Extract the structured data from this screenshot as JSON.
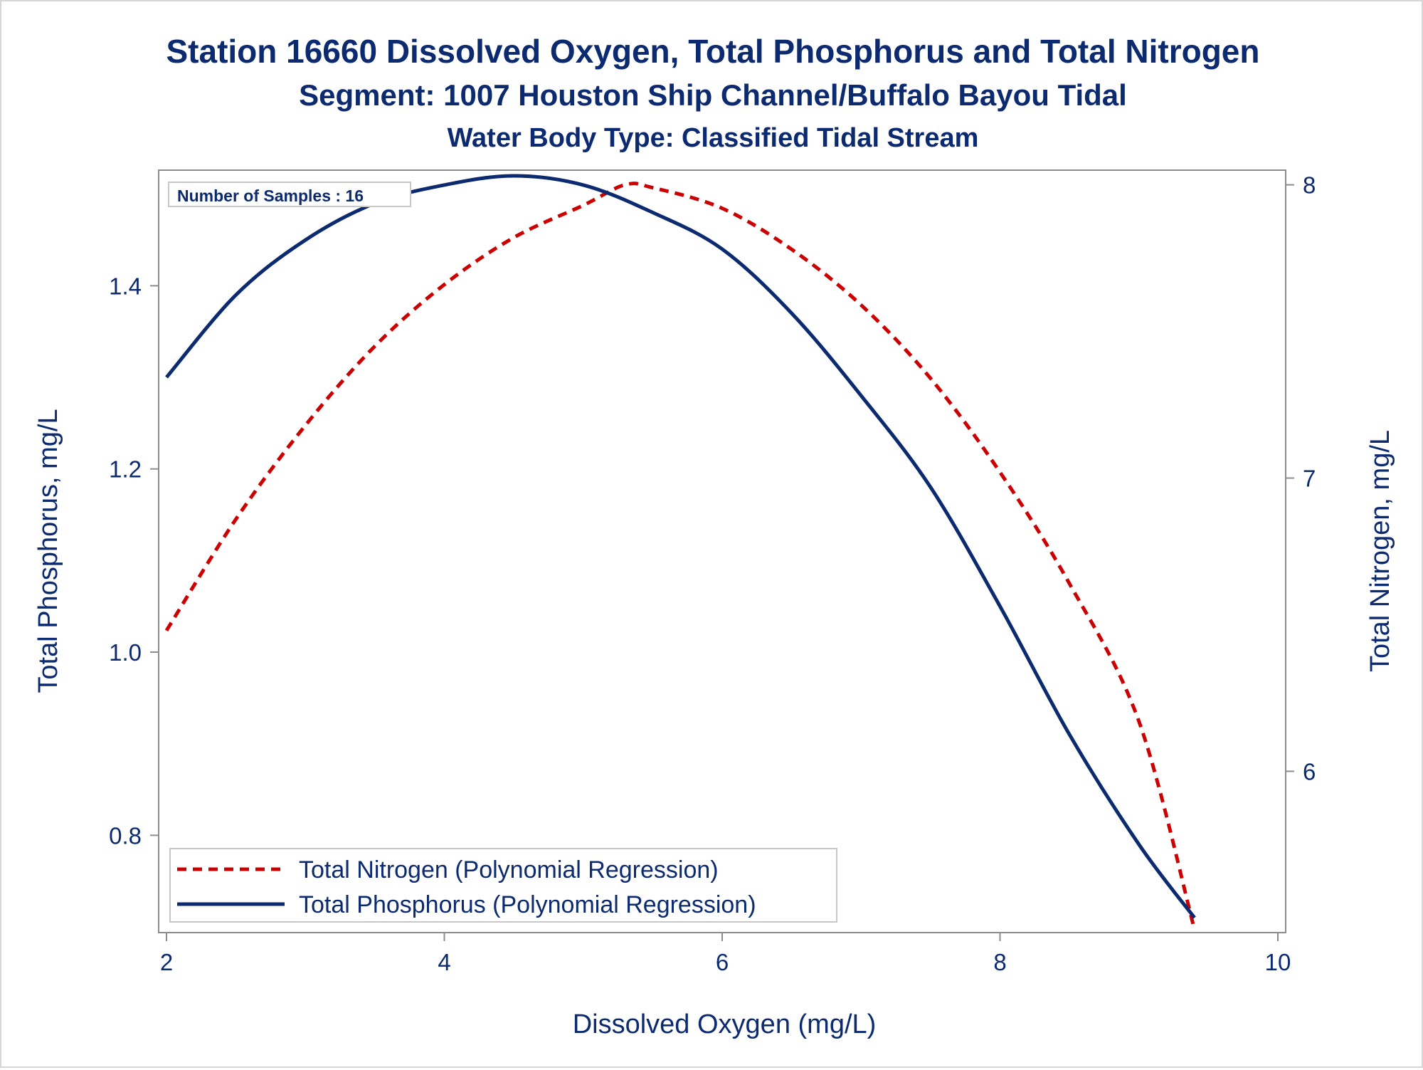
{
  "titles": {
    "line1": "Station 16660  Dissolved Oxygen, Total Phosphorus and Total Nitrogen",
    "line2": "Segment: 1007  Houston Ship Channel/Buffalo Bayou Tidal",
    "line3": "Water Body Type: Classified Tidal Stream"
  },
  "inset": {
    "samples_label": "Number of Samples : 16"
  },
  "chart_data": {
    "type": "line",
    "title": "Station 16660  Dissolved Oxygen, Total Phosphorus and Total Nitrogen",
    "xlabel": "Dissolved Oxygen (mg/L)",
    "ylabel": "Total Phosphorus, mg/L",
    "y2label": "Total Nitrogen, mg/L",
    "xlim": [
      2,
      10
    ],
    "ylim": [
      0.7,
      1.52
    ],
    "y2lim": [
      5.45,
      8.05
    ],
    "x_ticks": [
      "2",
      "4",
      "6",
      "8",
      "10"
    ],
    "y_ticks": [
      "0.8",
      "1.0",
      "1.2",
      "1.4"
    ],
    "y2_ticks": [
      "6",
      "7",
      "8"
    ],
    "grid": false,
    "legend_position": "bottom-left",
    "series": [
      {
        "name": "Total Nitrogen (Polynomial Regression)",
        "axis": "right",
        "color": "#cc0000",
        "style": "dashed",
        "x": [
          2.0,
          2.5,
          3.0,
          3.5,
          4.0,
          4.5,
          5.0,
          5.3,
          5.5,
          6.0,
          6.5,
          7.0,
          7.5,
          8.0,
          8.5,
          9.0,
          9.4
        ],
        "y": [
          6.48,
          6.86,
          7.18,
          7.45,
          7.66,
          7.82,
          7.93,
          8.0,
          7.99,
          7.92,
          7.78,
          7.59,
          7.34,
          7.02,
          6.64,
          6.17,
          5.46
        ]
      },
      {
        "name": "Total Phosphorus (Polynomial Regression)",
        "axis": "left",
        "color": "#0b2a6f",
        "style": "solid",
        "x": [
          2.0,
          2.5,
          3.0,
          3.5,
          4.0,
          4.5,
          5.0,
          5.5,
          6.0,
          6.5,
          7.0,
          7.5,
          8.0,
          8.5,
          9.0,
          9.4
        ],
        "y": [
          1.3,
          1.39,
          1.45,
          1.49,
          1.51,
          1.52,
          1.51,
          1.48,
          1.44,
          1.37,
          1.28,
          1.18,
          1.05,
          0.91,
          0.79,
          0.71
        ]
      }
    ]
  }
}
